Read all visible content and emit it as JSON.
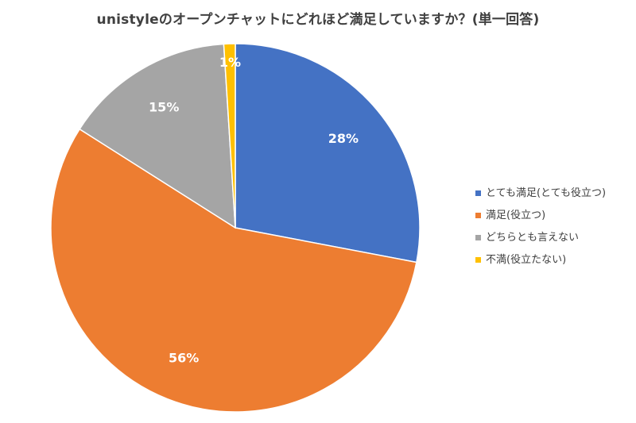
{
  "chart_data": {
    "type": "pie",
    "title": "unistyleのオープンチャットにどれほど満足していますか？(単一回答)",
    "slices": [
      {
        "label": "とても満足(とても役立つ)",
        "value": 28,
        "data_label": "28%",
        "color": "#4472C4",
        "label_color": "#ffffff"
      },
      {
        "label": "満足(役立つ)",
        "value": 56,
        "data_label": "56%",
        "color": "#ED7D31",
        "label_color": "#ffffff"
      },
      {
        "label": "どちらとも言えない",
        "value": 15,
        "data_label": "15%",
        "color": "#A5A5A5",
        "label_color": "#ffffff"
      },
      {
        "label": "不満(役立たない)",
        "value": 1,
        "data_label": "1%",
        "color": "#FFC000",
        "label_color": "#ffffff"
      }
    ],
    "legend_position": "right",
    "start_angle": "12 o'clock, clockwise"
  }
}
